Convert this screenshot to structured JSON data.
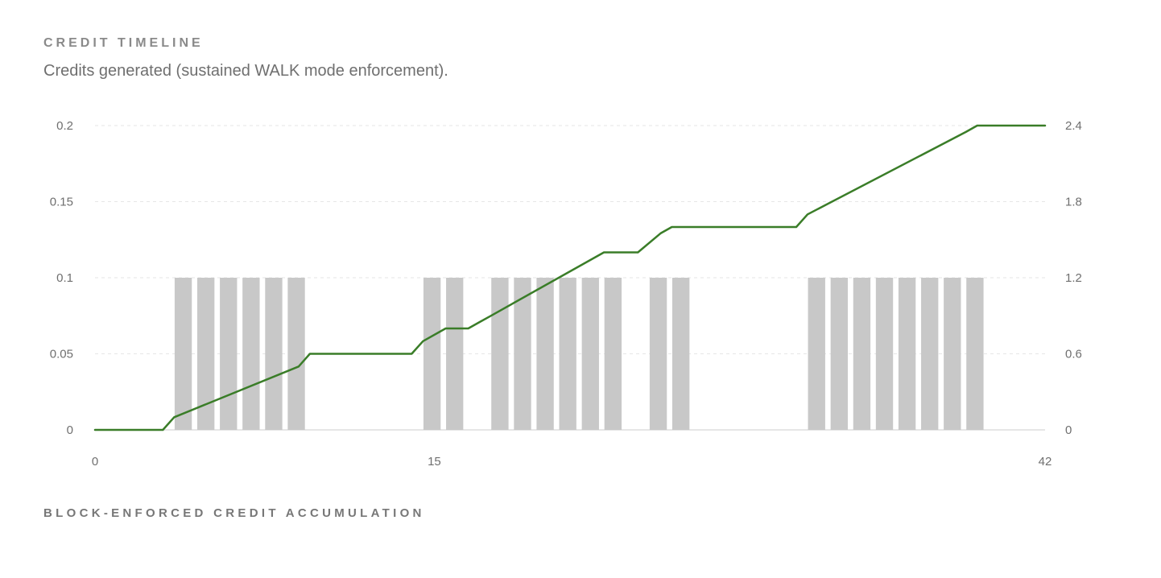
{
  "header": {
    "eyebrow": "CREDIT TIMELINE",
    "subtitle": "Credits generated (sustained WALK mode enforcement)."
  },
  "footer": {
    "label": "BLOCK-ENFORCED CREDIT ACCUMULATION"
  },
  "colors": {
    "bars": "#c8c8c8",
    "line": "#3a7d28",
    "grid": "#e6e6e6",
    "axis": "#dddddd"
  },
  "chart_data": {
    "type": "bar+line",
    "x_ticks": [
      0,
      15,
      42
    ],
    "xlim": [
      0,
      42
    ],
    "left_axis": {
      "ticks": [
        "0",
        "0.05",
        "0.1",
        "0.15",
        "0.2"
      ],
      "ylim": [
        0,
        0.2
      ]
    },
    "right_axis": {
      "ticks": [
        "0",
        "0.6",
        "1.2",
        "1.8",
        "2.4"
      ],
      "ylim": [
        0,
        2.4
      ]
    },
    "grid": true,
    "bars": {
      "axis": "left",
      "x": [
        4,
        5,
        6,
        7,
        8,
        9,
        15,
        16,
        18,
        19,
        20,
        21,
        22,
        23,
        25,
        26,
        32,
        33,
        34,
        35,
        36,
        37,
        38,
        39
      ],
      "values": [
        0.1,
        0.1,
        0.1,
        0.1,
        0.1,
        0.1,
        0.1,
        0.1,
        0.1,
        0.1,
        0.1,
        0.1,
        0.1,
        0.1,
        0.1,
        0.1,
        0.1,
        0.1,
        0.1,
        0.1,
        0.1,
        0.1,
        0.1,
        0.1
      ]
    },
    "line": {
      "axis": "right",
      "x": [
        0,
        3,
        3.5,
        9,
        9.5,
        14,
        14.5,
        15.5,
        16.5,
        17,
        17.5,
        22.5,
        23,
        24,
        25,
        25.5,
        26,
        31,
        31.5,
        38.5,
        39,
        42
      ],
      "y": [
        0,
        0,
        0.1,
        0.5,
        0.6,
        0.6,
        0.7,
        0.8,
        0.8,
        0.85,
        0.9,
        1.4,
        1.4,
        1.4,
        1.55,
        1.6,
        1.6,
        1.6,
        1.7,
        2.35,
        2.4,
        2.4
      ]
    }
  }
}
